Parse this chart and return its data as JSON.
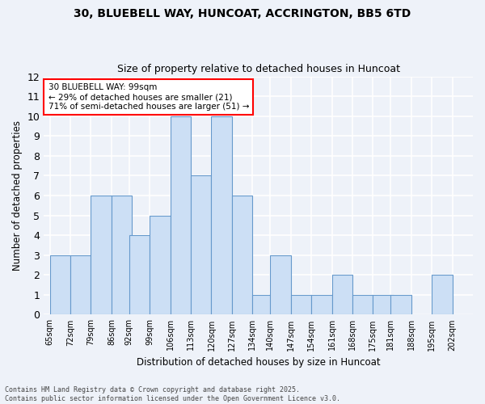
{
  "title1": "30, BLUEBELL WAY, HUNCOAT, ACCRINGTON, BB5 6TD",
  "title2": "Size of property relative to detached houses in Huncoat",
  "xlabel": "Distribution of detached houses by size in Huncoat",
  "ylabel": "Number of detached properties",
  "bin_labels": [
    "65sqm",
    "72sqm",
    "79sqm",
    "86sqm",
    "92sqm",
    "99sqm",
    "106sqm",
    "113sqm",
    "120sqm",
    "127sqm",
    "134sqm",
    "140sqm",
    "147sqm",
    "154sqm",
    "161sqm",
    "168sqm",
    "175sqm",
    "181sqm",
    "188sqm",
    "195sqm",
    "202sqm"
  ],
  "bin_values": [
    3,
    3,
    6,
    6,
    4,
    5,
    10,
    7,
    10,
    6,
    1,
    3,
    1,
    1,
    2,
    1,
    1,
    1,
    0,
    2,
    0
  ],
  "bar_color": "#ccdff5",
  "bar_edgecolor": "#6699cc",
  "annotation_text": "30 BLUEBELL WAY: 99sqm\n← 29% of detached houses are smaller (21)\n71% of semi-detached houses are larger (51) →",
  "annotation_box_color": "white",
  "annotation_box_edgecolor": "red",
  "ylim": [
    0,
    12
  ],
  "yticks": [
    0,
    1,
    2,
    3,
    4,
    5,
    6,
    7,
    8,
    9,
    10,
    11,
    12
  ],
  "footer1": "Contains HM Land Registry data © Crown copyright and database right 2025.",
  "footer2": "Contains public sector information licensed under the Open Government Licence v3.0.",
  "background_color": "#eef2f9",
  "grid_color": "white"
}
